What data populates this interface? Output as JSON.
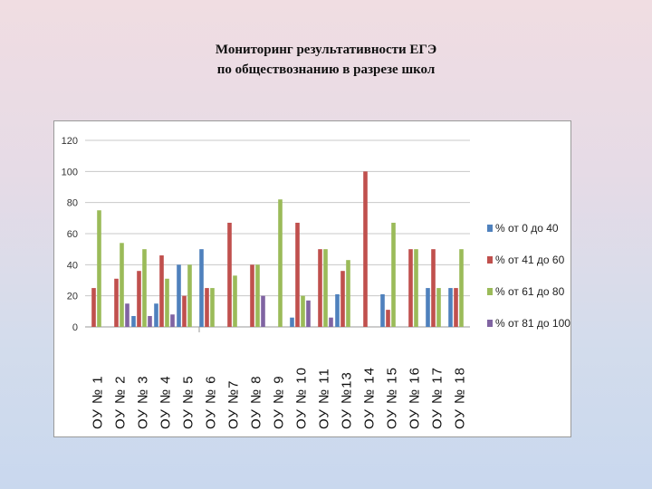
{
  "slide": {
    "title_line1": "Мониторинг результативности ЕГЭ",
    "title_line2": "по обществознанию в разрезе школ"
  },
  "chart_data": {
    "type": "bar",
    "title": "",
    "xlabel": "",
    "ylabel": "",
    "ylim": [
      0,
      120
    ],
    "yticks": [
      0,
      20,
      40,
      60,
      80,
      100,
      120
    ],
    "grid": true,
    "legend_position": "right",
    "categories": [
      "ОУ № 1",
      "ОУ № 2",
      "ОУ № 3",
      "ОУ № 4",
      "ОУ № 5",
      "ОУ № 6",
      "ОУ №7",
      "ОУ № 8",
      "ОУ № 9",
      "ОУ № 10",
      "ОУ № 11",
      "ОУ №13",
      "ОУ № 14",
      "ОУ № 15",
      "ОУ № 16",
      "ОУ № 17",
      "ОУ № 18"
    ],
    "series": [
      {
        "name": "% от 0 до 40",
        "color": "#4f81bd",
        "values": [
          0,
          0,
          7,
          15,
          40,
          50,
          0,
          0,
          0,
          6,
          0,
          21,
          0,
          21,
          0,
          25,
          25
        ]
      },
      {
        "name": "% от 41 до 60",
        "color": "#c0504d",
        "values": [
          25,
          31,
          36,
          46,
          20,
          25,
          67,
          40,
          0,
          67,
          50,
          36,
          100,
          11,
          50,
          50,
          25
        ]
      },
      {
        "name": "% от 61 до 80",
        "color": "#9bbb59",
        "values": [
          75,
          54,
          50,
          31,
          40,
          25,
          33,
          40,
          82,
          20,
          50,
          43,
          0,
          67,
          50,
          25,
          50
        ]
      },
      {
        "name": "% от 81 до 100",
        "color": "#8064a2",
        "values": [
          0,
          15,
          7,
          8,
          0,
          0,
          0,
          20,
          0,
          17,
          6,
          0,
          0,
          0,
          0,
          0,
          0
        ]
      }
    ]
  }
}
